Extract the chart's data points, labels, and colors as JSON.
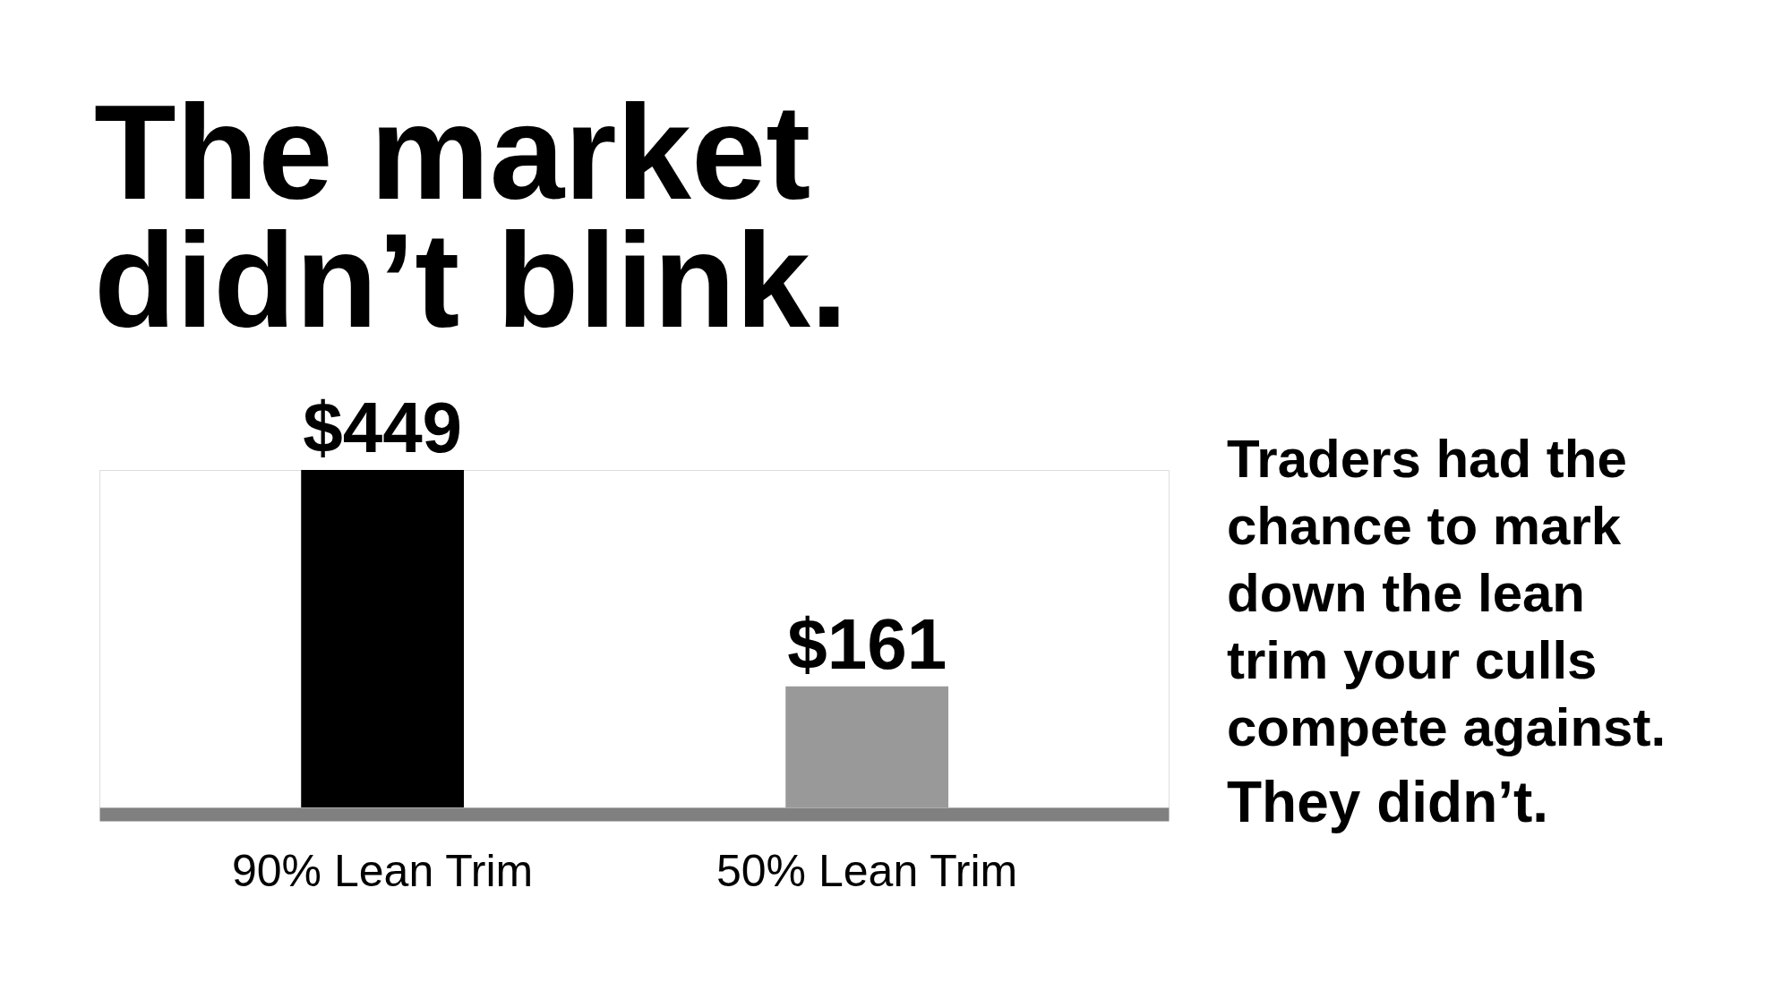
{
  "chart_data": {
    "type": "bar",
    "title": "The market didn’t blink.",
    "categories": [
      "90% Lean Trim",
      "50% Lean Trim"
    ],
    "values": [
      449,
      161
    ],
    "colors": [
      "#000000",
      "#999999"
    ],
    "value_labels": [
      "$449",
      "$161"
    ],
    "annotations": [
      "Traders had the chance to mark down the lean trim your culls compete against.",
      "They didn’t."
    ]
  }
}
